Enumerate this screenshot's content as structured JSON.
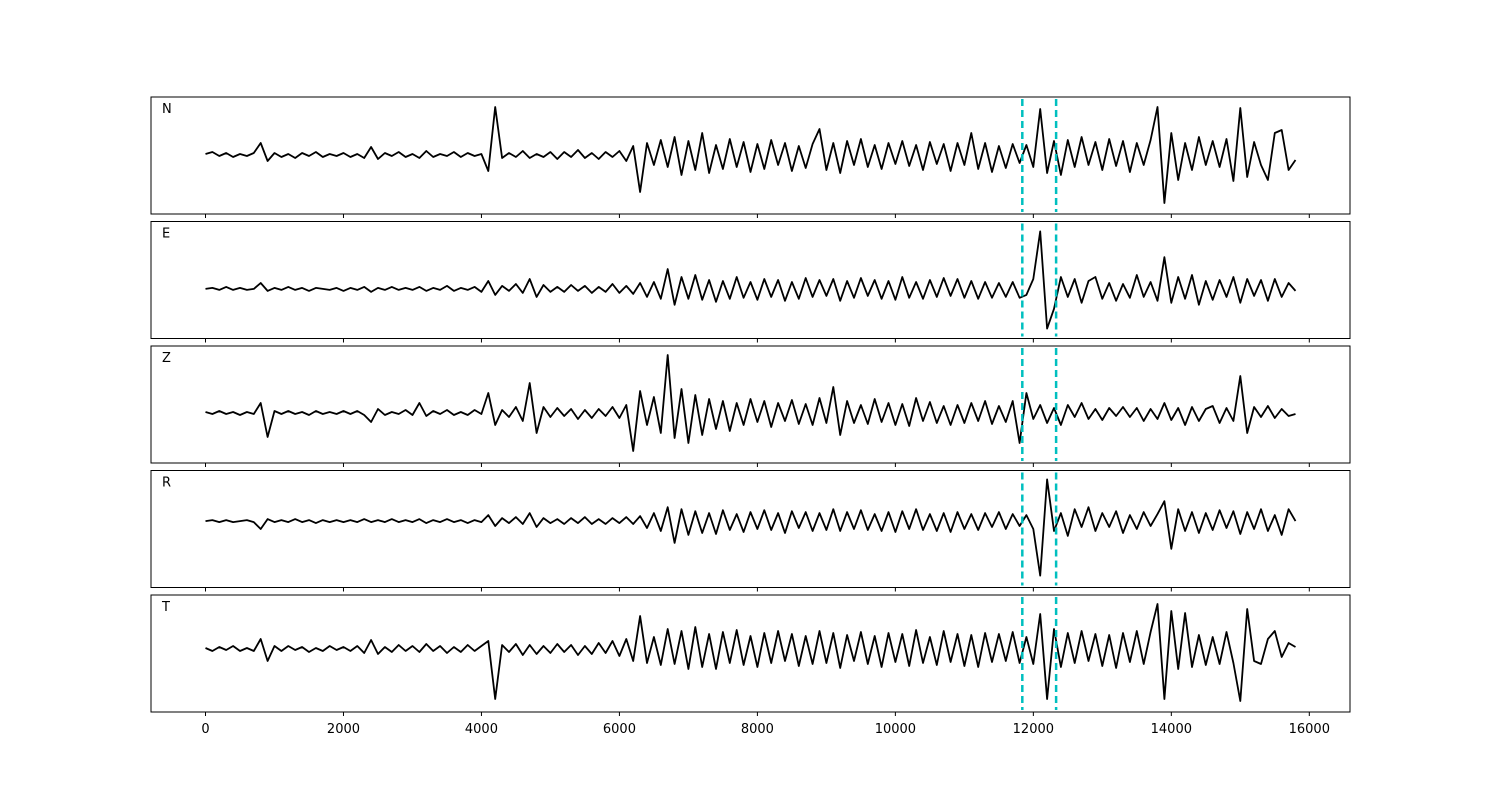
{
  "chart_data": {
    "type": "line",
    "x": [
      0,
      100,
      200,
      300,
      400,
      500,
      600,
      700,
      800,
      900,
      1000,
      1100,
      1200,
      1300,
      1400,
      1500,
      1600,
      1700,
      1800,
      1900,
      2000,
      2100,
      2200,
      2300,
      2400,
      2500,
      2600,
      2700,
      2800,
      2900,
      3000,
      3100,
      3200,
      3300,
      3400,
      3500,
      3600,
      3700,
      3800,
      3900,
      4000,
      4100,
      4200,
      4300,
      4400,
      4500,
      4600,
      4700,
      4800,
      4900,
      5000,
      5100,
      5200,
      5300,
      5400,
      5500,
      5600,
      5700,
      5800,
      5900,
      6000,
      6100,
      6200,
      6300,
      6400,
      6500,
      6600,
      6700,
      6800,
      6900,
      7000,
      7100,
      7200,
      7300,
      7400,
      7500,
      7600,
      7700,
      7800,
      7900,
      8000,
      8100,
      8200,
      8300,
      8400,
      8500,
      8600,
      8700,
      8800,
      8900,
      9000,
      9100,
      9200,
      9300,
      9400,
      9500,
      9600,
      9700,
      9800,
      9900,
      10000,
      10100,
      10200,
      10300,
      10400,
      10500,
      10600,
      10700,
      10800,
      10900,
      11000,
      11100,
      11200,
      11300,
      11400,
      11500,
      11600,
      11700,
      11800,
      11900,
      12000,
      12100,
      12200,
      12300,
      12400,
      12500,
      12600,
      12700,
      12800,
      12900,
      13000,
      13100,
      13200,
      13300,
      13400,
      13500,
      13600,
      13700,
      13800,
      13900,
      14000,
      14100,
      14200,
      14300,
      14400,
      14500,
      14600,
      14700,
      14800,
      14900,
      15000,
      15100,
      15200,
      15300,
      15400,
      15500,
      15600,
      15700,
      15800
    ],
    "xlim": [
      -790,
      16590
    ],
    "xticks": [
      0,
      2000,
      4000,
      6000,
      8000,
      10000,
      12000,
      14000,
      16000
    ],
    "vlines": [
      11840,
      12330
    ],
    "vline_color": "#00bfbf",
    "series": [
      {
        "name": "N",
        "color": "#000000",
        "ylim": [
          -59,
          58
        ],
        "values": [
          1,
          3,
          -1,
          2,
          -2,
          1,
          -1,
          2,
          12,
          -6,
          2,
          -2,
          1,
          -3,
          2,
          -1,
          3,
          -2,
          1,
          -1,
          2,
          -2,
          1,
          -3,
          8,
          -4,
          2,
          -1,
          3,
          -2,
          1,
          -3,
          4,
          -2,
          1,
          -1,
          3,
          -2,
          2,
          -1,
          1,
          -16,
          48,
          -3,
          2,
          -2,
          4,
          -3,
          1,
          -2,
          3,
          -4,
          3,
          -2,
          5,
          -3,
          2,
          -4,
          3,
          -2,
          4,
          -6,
          9,
          -37,
          12,
          -10,
          15,
          -12,
          18,
          -20,
          14,
          -15,
          22,
          -18,
          10,
          -14,
          16,
          -12,
          13,
          -17,
          11,
          -14,
          15,
          -10,
          12,
          -16,
          9,
          -13,
          11,
          26,
          -15,
          12,
          -18,
          14,
          -10,
          16,
          -12,
          10,
          -14,
          12,
          -9,
          14,
          -11,
          10,
          -15,
          13,
          -9,
          11,
          -16,
          12,
          -10,
          22,
          -14,
          12,
          -17,
          9,
          -13,
          11,
          -8,
          10,
          -12,
          46,
          -18,
          14,
          -20,
          15,
          -12,
          18,
          -10,
          13,
          -15,
          16,
          -11,
          14,
          -17,
          12,
          -10,
          15,
          48,
          -48,
          22,
          -25,
          12,
          -15,
          18,
          -10,
          14,
          -12,
          16,
          -26,
          47,
          -22,
          13,
          -10,
          -25,
          22,
          25,
          -15,
          -5
        ]
      },
      {
        "name": "E",
        "color": "#000000",
        "ylim": [
          -50,
          68
        ],
        "values": [
          0,
          1,
          -1,
          2,
          -1,
          1,
          -1,
          0,
          6,
          -2,
          1,
          -1,
          2,
          -1,
          1,
          -2,
          1,
          0,
          -1,
          1,
          -2,
          1,
          -1,
          2,
          -3,
          1,
          -1,
          2,
          -1,
          1,
          -1,
          2,
          -2,
          1,
          -1,
          3,
          -2,
          1,
          -1,
          2,
          -3,
          8,
          -6,
          3,
          -2,
          5,
          -4,
          10,
          -8,
          4,
          -3,
          2,
          -3,
          4,
          -2,
          3,
          -4,
          2,
          -3,
          5,
          -4,
          3,
          -5,
          6,
          -8,
          7,
          -10,
          20,
          -16,
          12,
          -10,
          14,
          -11,
          9,
          -13,
          8,
          -10,
          12,
          -9,
          7,
          -11,
          10,
          -8,
          9,
          -12,
          7,
          -10,
          11,
          -8,
          9,
          -7,
          10,
          -12,
          8,
          -9,
          11,
          -7,
          9,
          -10,
          8,
          -11,
          12,
          -9,
          7,
          -10,
          9,
          -8,
          11,
          -7,
          10,
          -9,
          8,
          -10,
          7,
          -9,
          6,
          -8,
          7,
          -9,
          -6,
          10,
          58,
          -40,
          -20,
          12,
          -8,
          10,
          -14,
          8,
          12,
          -10,
          6,
          -12,
          5,
          -9,
          14,
          -8,
          7,
          -12,
          32,
          -14,
          12,
          -10,
          14,
          -16,
          8,
          -11,
          9,
          -8,
          12,
          -14,
          10,
          -7,
          9,
          -12,
          10,
          -8,
          6,
          -2
        ]
      },
      {
        "name": "Z",
        "color": "#000000",
        "ylim": [
          -50,
          67
        ],
        "values": [
          1,
          -1,
          2,
          -1,
          1,
          -2,
          1,
          -1,
          10,
          -24,
          2,
          -1,
          2,
          -1,
          1,
          -2,
          2,
          -1,
          1,
          -1,
          2,
          -1,
          2,
          -2,
          -9,
          4,
          -2,
          1,
          -1,
          3,
          -2,
          10,
          -3,
          2,
          -1,
          3,
          -2,
          1,
          -2,
          3,
          -1,
          20,
          -12,
          3,
          -4,
          6,
          -8,
          30,
          -20,
          6,
          -4,
          5,
          -3,
          4,
          -6,
          3,
          -5,
          4,
          -3,
          6,
          -5,
          8,
          -38,
          22,
          -12,
          16,
          -20,
          58,
          -25,
          24,
          -30,
          18,
          -22,
          14,
          -16,
          12,
          -18,
          10,
          -12,
          14,
          -9,
          12,
          -14,
          10,
          -8,
          13,
          -11,
          9,
          -12,
          15,
          -10,
          26,
          -22,
          12,
          -10,
          8,
          -11,
          14,
          -9,
          10,
          -12,
          9,
          -13,
          15,
          -8,
          11,
          -10,
          7,
          -12,
          8,
          -10,
          10,
          -8,
          12,
          -11,
          7,
          -9,
          12,
          -30,
          20,
          -6,
          8,
          -10,
          5,
          -12,
          8,
          -4,
          10,
          -6,
          4,
          -7,
          5,
          -3,
          6,
          -4,
          5,
          -8,
          4,
          -6,
          10,
          -7,
          5,
          -12,
          6,
          -8,
          4,
          7,
          -10,
          5,
          -8,
          37,
          -20,
          6,
          -4,
          7,
          -5,
          4,
          -3,
          -1
        ]
      },
      {
        "name": "R",
        "color": "#000000",
        "ylim": [
          -67,
          51
        ],
        "values": [
          0,
          1,
          -1,
          1,
          -1,
          0,
          1,
          -1,
          -8,
          2,
          -1,
          1,
          -1,
          2,
          -1,
          1,
          -2,
          1,
          -1,
          1,
          -1,
          1,
          -1,
          2,
          -1,
          1,
          -1,
          2,
          -1,
          1,
          -1,
          2,
          -2,
          1,
          -1,
          2,
          -1,
          1,
          -2,
          1,
          -1,
          6,
          -5,
          3,
          -2,
          4,
          -3,
          8,
          -6,
          3,
          -2,
          2,
          -3,
          3,
          -2,
          4,
          -3,
          2,
          -3,
          3,
          -2,
          4,
          -3,
          5,
          -7,
          8,
          -10,
          14,
          -22,
          12,
          -14,
          10,
          -12,
          8,
          -13,
          11,
          -9,
          7,
          -11,
          9,
          -8,
          11,
          -9,
          8,
          -12,
          10,
          -7,
          9,
          -10,
          8,
          -9,
          12,
          -10,
          9,
          -8,
          11,
          -9,
          7,
          -10,
          9,
          -11,
          10,
          -8,
          12,
          -9,
          7,
          -10,
          8,
          -11,
          9,
          -8,
          7,
          -9,
          8,
          -6,
          9,
          -8,
          7,
          -5,
          6,
          -8,
          -55,
          42,
          -10,
          8,
          -15,
          12,
          -6,
          14,
          -10,
          8,
          -6,
          10,
          -12,
          6,
          -8,
          9,
          -5,
          7,
          20,
          -28,
          12,
          -10,
          9,
          -12,
          8,
          -9,
          11,
          -7,
          10,
          -13,
          9,
          -8,
          12,
          -10,
          6,
          -14,
          12,
          0
        ]
      },
      {
        "name": "T",
        "color": "#000000",
        "ylim": [
          -63,
          54
        ],
        "values": [
          1,
          -2,
          2,
          -1,
          3,
          -2,
          1,
          -2,
          10,
          -12,
          3,
          -2,
          3,
          -1,
          2,
          -3,
          1,
          -2,
          3,
          -1,
          2,
          -2,
          3,
          -4,
          9,
          -5,
          2,
          -3,
          4,
          -2,
          3,
          -3,
          5,
          -2,
          3,
          -4,
          2,
          -3,
          4,
          -2,
          3,
          8,
          -50,
          4,
          -3,
          5,
          -6,
          4,
          -5,
          3,
          -4,
          5,
          -3,
          4,
          -6,
          3,
          -5,
          6,
          -4,
          8,
          -7,
          10,
          -12,
          33,
          -14,
          12,
          -16,
          20,
          -15,
          18,
          -20,
          22,
          -18,
          15,
          -20,
          17,
          -14,
          19,
          -16,
          13,
          -18,
          16,
          -14,
          18,
          -12,
          15,
          -17,
          13,
          -15,
          18,
          -14,
          16,
          -19,
          14,
          -12,
          17,
          -15,
          13,
          -18,
          16,
          -13,
          15,
          -17,
          19,
          -14,
          12,
          -16,
          18,
          -13,
          15,
          -17,
          14,
          -18,
          16,
          -13,
          15,
          -12,
          17,
          -14,
          12,
          -15,
          35,
          -50,
          20,
          -18,
          16,
          -14,
          18,
          -12,
          15,
          -17,
          14,
          -19,
          16,
          -13,
          18,
          -15,
          17,
          45,
          -50,
          38,
          -20,
          36,
          -18,
          14,
          -16,
          12,
          -15,
          17,
          -14,
          -52,
          40,
          -12,
          -15,
          10,
          18,
          -8,
          6,
          2
        ]
      }
    ]
  }
}
